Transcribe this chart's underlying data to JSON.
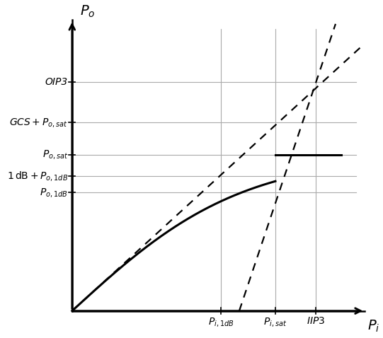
{
  "figsize": [
    5.41,
    4.78
  ],
  "dpi": 100,
  "background_color": "white",
  "grid_color": "#aaaaaa",
  "key_points": {
    "P_i_1dB": 5.5,
    "P_i_sat": 7.5,
    "IIP3": 9.0,
    "P_o_1dB": 4.4,
    "P_o_1dB_plus1": 5.0,
    "P_o_sat": 5.8,
    "GCS_plus_Po_sat": 7.0,
    "OIP3": 8.5,
    "G_lin": 0.92
  },
  "plot_xlim": [
    -1.5,
    11.2
  ],
  "plot_ylim": [
    -0.7,
    11.2
  ],
  "data_xlim": [
    0,
    10.8
  ],
  "data_ylim": [
    0,
    10.8
  ],
  "labels": {
    "OIP3": "OIP3",
    "GCS_Po_sat": "$GCS + P_{o,sat}$",
    "Po_sat": "$P_{o,sat}$",
    "Po_1dB_plus1": "$1\\,\\mathrm{dB} + P_{o,1dB}$",
    "Po_1dB": "$P_{o,1dB}$",
    "Pi_1dB": "$P_{i,1dB}$",
    "Pi_sat": "$P_{i,sat}$",
    "IIP3": "$IIP3$",
    "Po_axis": "$P_o$",
    "Pi_axis": "$P_i$"
  }
}
